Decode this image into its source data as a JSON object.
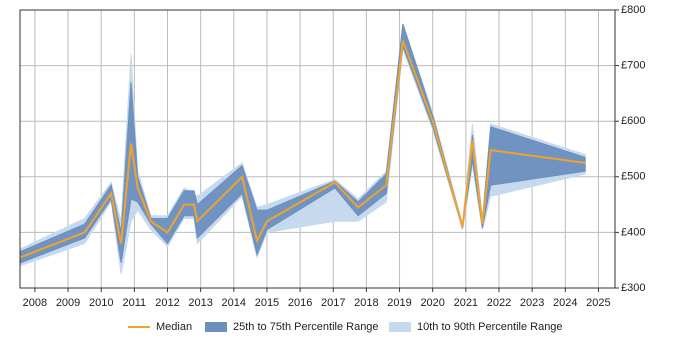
{
  "chart_data": {
    "type": "band-line",
    "x": [
      2007.55,
      2009.5,
      2010.3,
      2010.6,
      2010.9,
      2011.1,
      2011.5,
      2012.0,
      2012.5,
      2012.8,
      2012.9,
      2014.25,
      2014.7,
      2015.0,
      2017.05,
      2017.75,
      2018.6,
      2019.1,
      2020.0,
      2020.9,
      2021.2,
      2021.5,
      2021.75,
      2024.6
    ],
    "series": [
      {
        "name": "10th to 90th Percentile Range",
        "color": "#c6d9ee",
        "low": [
          340,
          380,
          455,
          325,
          420,
          440,
          405,
          375,
          425,
          425,
          380,
          465,
          355,
          400,
          420,
          420,
          455,
          730,
          585,
          405,
          520,
          405,
          465,
          505
        ],
        "high": [
          370,
          425,
          490,
          420,
          720,
          510,
          430,
          430,
          480,
          470,
          465,
          525,
          445,
          450,
          495,
          460,
          510,
          775,
          615,
          415,
          595,
          425,
          595,
          540
        ]
      },
      {
        "name": "25th to 75th Percentile Range",
        "color": "#6b8fbf",
        "low": [
          345,
          390,
          460,
          345,
          460,
          455,
          415,
          380,
          430,
          430,
          390,
          470,
          360,
          405,
          480,
          430,
          470,
          735,
          590,
          408,
          530,
          408,
          485,
          510
        ],
        "high": [
          365,
          415,
          485,
          400,
          670,
          500,
          425,
          425,
          475,
          475,
          450,
          520,
          440,
          440,
          492,
          455,
          505,
          775,
          610,
          412,
          575,
          420,
          590,
          535
        ]
      },
      {
        "name": "Median",
        "color": "#f0a32a",
        "values": [
          355,
          400,
          470,
          380,
          560,
          480,
          420,
          400,
          450,
          450,
          420,
          500,
          385,
          420,
          490,
          445,
          485,
          745,
          600,
          410,
          565,
          415,
          548,
          525
        ]
      }
    ],
    "xlim": [
      2007.55,
      2025.5
    ],
    "xticks": [
      2008,
      2009,
      2010,
      2011,
      2012,
      2013,
      2014,
      2015,
      2016,
      2017,
      2018,
      2019,
      2020,
      2021,
      2022,
      2023,
      2024,
      2025
    ],
    "ylim": [
      300,
      800
    ],
    "yticks": [
      {
        "value": 300,
        "label": "£300"
      },
      {
        "value": 400,
        "label": "£400"
      },
      {
        "value": 500,
        "label": "£500"
      },
      {
        "value": 600,
        "label": "£600"
      },
      {
        "value": 700,
        "label": "£700"
      },
      {
        "value": 800,
        "label": "£800"
      }
    ],
    "grid": true,
    "legend": "bottom"
  }
}
